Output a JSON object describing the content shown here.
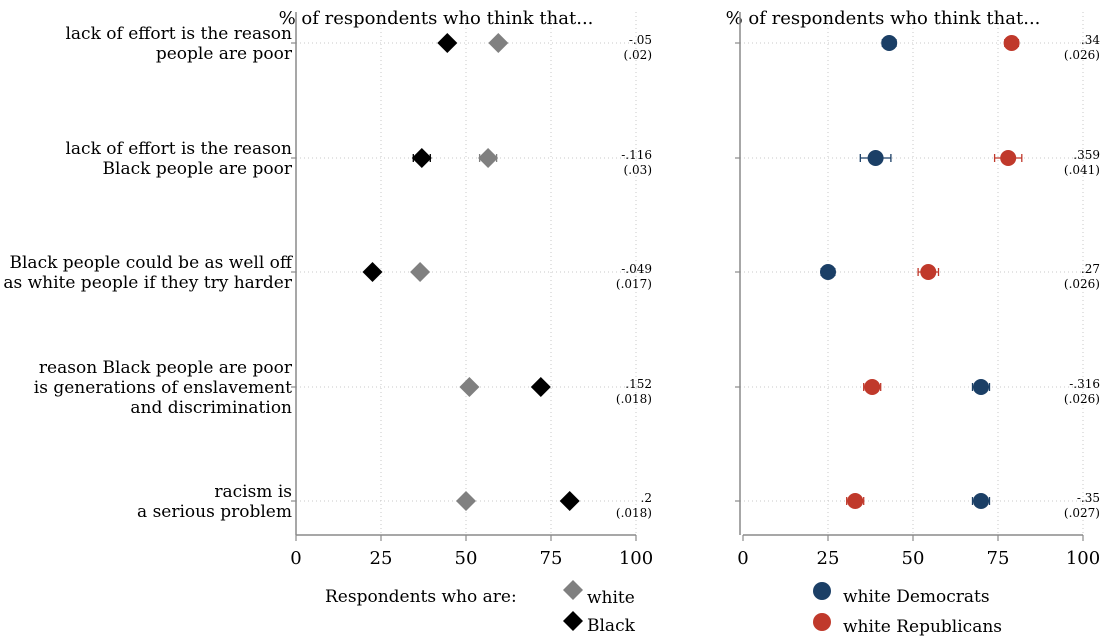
{
  "chart_data": [
    {
      "type": "scatter",
      "title": "% of respondents who think that...",
      "xlim": [
        0,
        100
      ],
      "xticks": [
        "0",
        "25",
        "50",
        "75",
        "100"
      ],
      "grid": true,
      "categories": [
        "lack of effort is the reason people are poor",
        "lack of effort is the reason Black people are poor",
        "Black people could be as well off as white people if they try harder",
        "reason Black people are poor is generations of enslavement and discrimination",
        "racism is a serious problem"
      ],
      "category_lines": [
        [
          "lack of effort is the reason",
          "people are poor"
        ],
        [
          "lack of effort is the reason",
          "Black people are poor"
        ],
        [
          "Black people could be as well off",
          "as white people if they try harder"
        ],
        [
          "reason Black people are poor",
          "is generations of enslavement",
          "and discrimination"
        ],
        [
          "racism is",
          "a serious problem"
        ]
      ],
      "series": [
        {
          "name": "white",
          "color": "#808080",
          "marker": "diamond",
          "values": [
            59.5,
            56.5,
            36.5,
            51,
            50
          ],
          "ci": [
            0,
            2.5,
            0,
            0,
            0
          ]
        },
        {
          "name": "Black",
          "color": "#000000",
          "marker": "diamond",
          "values": [
            44.5,
            37,
            22.5,
            72,
            80.5
          ],
          "ci": [
            0,
            2.5,
            0,
            0,
            0
          ]
        }
      ],
      "differences": [
        "-.05",
        "-.116",
        "-.049",
        ".152",
        ".2"
      ],
      "std_errors": [
        "(.02)",
        "(.03)",
        "(.017)",
        "(.018)",
        "(.018)"
      ],
      "legend_title": "Respondents who are:"
    },
    {
      "type": "scatter",
      "title": "% of respondents who think that...",
      "xlim": [
        0,
        100
      ],
      "xticks": [
        "0",
        "25",
        "50",
        "75",
        "100"
      ],
      "grid": true,
      "series": [
        {
          "name": "white Democrats",
          "color": "#1b3f66",
          "marker": "circle",
          "values": [
            43,
            39,
            25,
            70,
            70
          ],
          "ci": [
            2,
            4.5,
            2,
            2.5,
            2.5
          ]
        },
        {
          "name": "white Republicans",
          "color": "#c0392b",
          "marker": "circle",
          "values": [
            79,
            78,
            54.5,
            38,
            33
          ],
          "ci": [
            2,
            4,
            3,
            2.5,
            2.5
          ]
        }
      ],
      "differences": [
        ".34",
        ".359",
        ".27",
        "-.316",
        "-.35"
      ],
      "std_errors": [
        "(.026)",
        "(.041)",
        "(.026)",
        "(.026)",
        "(.027)"
      ]
    }
  ]
}
